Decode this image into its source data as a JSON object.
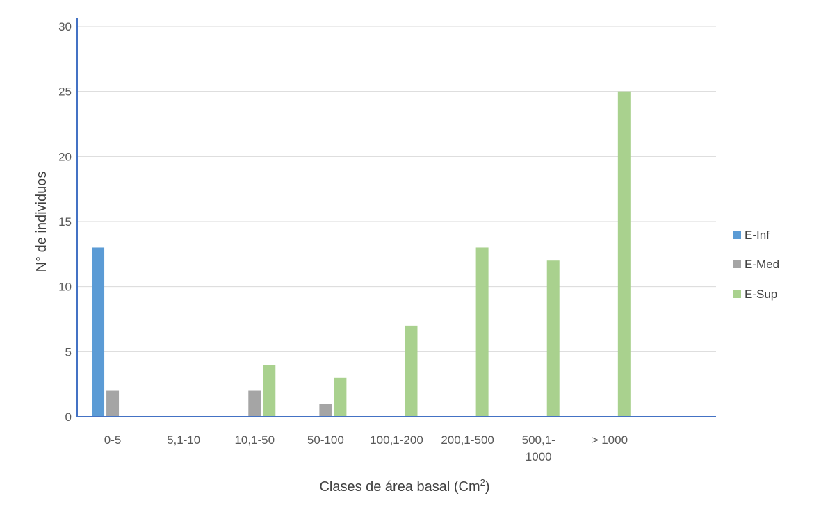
{
  "chart_data": {
    "type": "bar",
    "categories": [
      "0-5",
      "5,1-10",
      "10,1-50",
      "50-100",
      "100,1-200",
      "200,1-500",
      "500,1-1000",
      "> 1000",
      ""
    ],
    "category_label_lines": [
      [
        "0-5"
      ],
      [
        "5,1-10"
      ],
      [
        "10,1-50"
      ],
      [
        "50-100"
      ],
      [
        "100,1-200"
      ],
      [
        "200,1-500"
      ],
      [
        "500,1-",
        "1000"
      ],
      [
        "> 1000"
      ],
      []
    ],
    "series": [
      {
        "name": "E-Inf",
        "color": "#5b9bd5",
        "values": [
          13,
          0,
          0,
          0,
          0,
          0,
          0,
          0,
          0
        ]
      },
      {
        "name": "E-Med",
        "color": "#a5a5a5",
        "values": [
          2,
          0,
          2,
          1,
          0,
          0,
          0,
          0,
          0
        ]
      },
      {
        "name": "E-Sup",
        "color": "#a9d18e",
        "values": [
          0,
          0,
          4,
          3,
          7,
          13,
          12,
          25,
          0
        ]
      }
    ],
    "xlabel_main": "Clases de área basal (Cm",
    "xlabel_sup": "2",
    "xlabel_end": ")",
    "ylabel": "N° de individuos",
    "ylim": [
      0,
      30
    ],
    "yticks": [
      0,
      5,
      10,
      15,
      20,
      25,
      30
    ],
    "grid": true,
    "legend_position": "right",
    "axis_color": "#4472c4",
    "grid_color": "#d9d9d9"
  }
}
